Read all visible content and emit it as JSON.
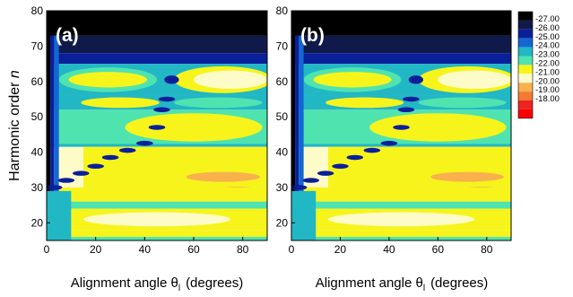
{
  "chart_data": [
    {
      "type": "heatmap",
      "panel_label": "(a)",
      "xlabel": "Alignment angle θ",
      "xlabel_subscript": "l",
      "xlabel_suffix": "(degrees)",
      "ylabel": "Harmonic order",
      "ylabel_var": "n",
      "xlim": [
        0,
        90
      ],
      "ylim": [
        15,
        80
      ],
      "xticks": [
        0,
        20,
        40,
        60,
        80
      ],
      "yticks": [
        20,
        30,
        40,
        50,
        60,
        70,
        80
      ]
    },
    {
      "type": "heatmap",
      "panel_label": "(b)",
      "xlabel": "Alignment angle θ",
      "xlabel_subscript": "l",
      "xlabel_suffix": "(degrees)",
      "ylabel": "",
      "xlim": [
        0,
        90
      ],
      "ylim": [
        15,
        80
      ],
      "xticks": [
        0,
        20,
        40,
        60,
        80
      ],
      "yticks": [
        20,
        30,
        40,
        50,
        60,
        70,
        80
      ]
    }
  ],
  "colorbar": {
    "levels": [
      "-27.00",
      "-26.00",
      "-25.00",
      "-24.00",
      "-23.00",
      "-22.00",
      "-21.00",
      "-20.00",
      "-19.00",
      "-18.00"
    ],
    "colors": [
      "#000000",
      "#101a4a",
      "#0a1f9a",
      "#1466d4",
      "#22b7c4",
      "#4fe3b0",
      "#f7f41c",
      "#fdfbc8",
      "#f9b14d",
      "#f47a34",
      "#ee2222",
      "#ff0000"
    ]
  }
}
